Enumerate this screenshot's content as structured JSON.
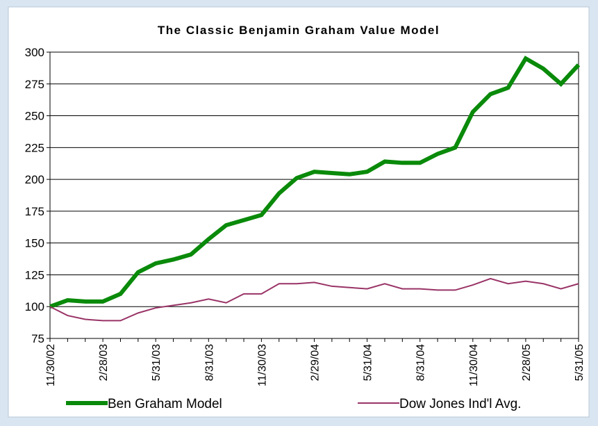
{
  "chart_data": {
    "type": "line",
    "title": "The Classic Benjamin Graham Value Model",
    "categories": [
      "11/30/02",
      null,
      null,
      "2/28/03",
      null,
      null,
      "5/31/03",
      null,
      null,
      "8/31/03",
      null,
      null,
      "11/30/03",
      null,
      null,
      "2/29/04",
      null,
      null,
      "5/31/04",
      null,
      null,
      "8/31/04",
      null,
      null,
      "11/30/04",
      null,
      null,
      "2/28/05",
      null,
      null,
      "5/31/05"
    ],
    "series": [
      {
        "name": "Ben Graham Model",
        "color": "#0a8a0a",
        "values": [
          100,
          105,
          104,
          104,
          110,
          127,
          134,
          137,
          141,
          153,
          164,
          168,
          172,
          189,
          201,
          206,
          205,
          204,
          206,
          214,
          213,
          213,
          220,
          225,
          253,
          267,
          272,
          295,
          287,
          275,
          290
        ]
      },
      {
        "name": "Dow Jones Ind'l Avg.",
        "color": "#993366",
        "values": [
          100,
          93,
          90,
          89,
          89,
          95,
          99,
          101,
          103,
          106,
          103,
          110,
          110,
          118,
          118,
          119,
          116,
          115,
          114,
          118,
          114,
          114,
          113,
          113,
          117,
          122,
          118,
          120,
          118,
          114,
          118
        ]
      }
    ],
    "ylim": [
      75,
      300
    ],
    "yticks": [
      75,
      100,
      125,
      150,
      175,
      200,
      225,
      250,
      275,
      300
    ],
    "grid": true,
    "legend": "bottom"
  }
}
